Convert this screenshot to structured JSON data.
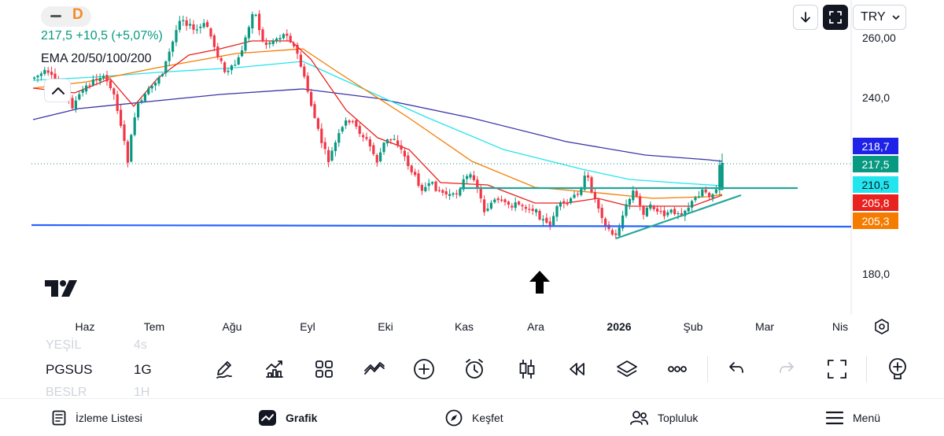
{
  "header": {
    "interval_badge": "D",
    "price_line": "217,5  +10,5 (+5,07%)",
    "indicator_label": "EMA 20/50/100/200"
  },
  "top_right": {
    "currency": "TRY"
  },
  "y_axis": {
    "labels": [
      "260,00",
      "240,0",
      "180,0"
    ]
  },
  "price_tags": [
    {
      "label": "218,7",
      "color": "#1e22e8"
    },
    {
      "label": "217,5",
      "color": "#089981"
    },
    {
      "label": "210,5",
      "color": "#22e5ee"
    },
    {
      "label": "205,8",
      "color": "#e8221e"
    },
    {
      "label": "205,3",
      "color": "#f57c00"
    }
  ],
  "x_axis": {
    "labels": [
      "Haz",
      "Tem",
      "Ağu",
      "Eyl",
      "Eki",
      "Kas",
      "Ara",
      "2026",
      "Şub",
      "Mar",
      "Nis"
    ]
  },
  "symbols": {
    "prev": "YEŞİL",
    "current": "PGSUS",
    "next": "BESLR"
  },
  "timeframes": {
    "prev": "4s",
    "current": "1G",
    "next": "1H"
  },
  "toolbar": {
    "icons": [
      "pencil-icon",
      "indicators-icon",
      "layouts-icon",
      "compare-icon",
      "add-icon",
      "alarm-icon",
      "candle-type-icon",
      "replay-icon",
      "layers-icon",
      "more-icon",
      "undo-icon",
      "redo-icon",
      "fullscreen-icon",
      "add-symbol-icon"
    ]
  },
  "bottom_nav": {
    "items": [
      "İzleme Listesi",
      "Grafik",
      "Keşfet",
      "Topluluk",
      "Menü"
    ]
  },
  "colors": {
    "up": "#089981",
    "down": "#f23645",
    "ema20": "#e8221e",
    "ema50": "#f57c00",
    "ema100": "#22e5ee",
    "ema200": "#3a34a8",
    "support_line": "#2962ff",
    "trend_lines": "#26a69a"
  }
}
